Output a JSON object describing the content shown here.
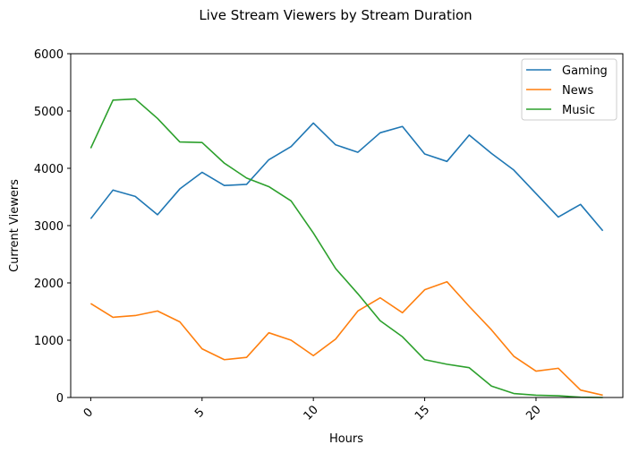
{
  "chart_data": {
    "type": "line",
    "title": "Live Stream Viewers by Stream Duration",
    "xlabel": "Hours",
    "ylabel": "Current Viewers",
    "xlim": [
      -0.9,
      23.9
    ],
    "ylim": [
      0,
      6000
    ],
    "xticks": [
      0,
      5,
      10,
      15,
      20
    ],
    "yticks": [
      0,
      1000,
      2000,
      3000,
      4000,
      5000,
      6000
    ],
    "x": [
      0,
      1,
      2,
      3,
      4,
      5,
      6,
      7,
      8,
      9,
      10,
      11,
      12,
      13,
      14,
      15,
      16,
      17,
      18,
      19,
      20,
      21,
      22,
      23
    ],
    "series": [
      {
        "name": "Gaming",
        "color": "#1f77b4",
        "values": [
          3120,
          3620,
          3510,
          3190,
          3640,
          3930,
          3700,
          3720,
          4150,
          4380,
          4790,
          4410,
          4280,
          4620,
          4730,
          4250,
          4120,
          4580,
          4260,
          3970,
          3560,
          3150,
          3370,
          2910
        ]
      },
      {
        "name": "News",
        "color": "#ff7f0e",
        "values": [
          1640,
          1400,
          1430,
          1510,
          1320,
          850,
          660,
          700,
          1130,
          1000,
          730,
          1020,
          1510,
          1740,
          1480,
          1880,
          2020,
          1590,
          1180,
          720,
          460,
          510,
          130,
          40
        ]
      },
      {
        "name": "Music",
        "color": "#2ca02c",
        "values": [
          4350,
          5190,
          5210,
          4870,
          4460,
          4450,
          4090,
          3830,
          3680,
          3430,
          2870,
          2250,
          1810,
          1340,
          1060,
          660,
          580,
          520,
          200,
          70,
          40,
          30,
          5,
          0
        ]
      }
    ],
    "legend": "top-right",
    "grid": false
  }
}
